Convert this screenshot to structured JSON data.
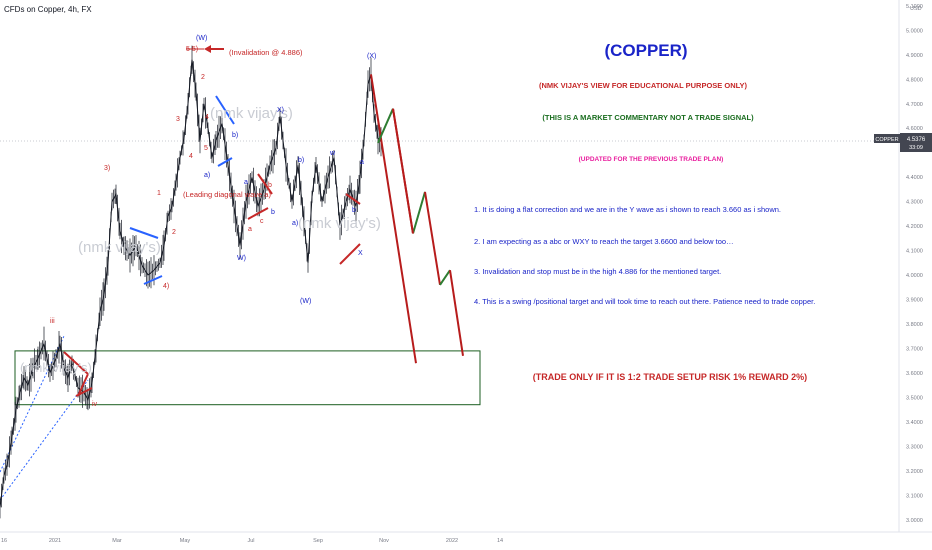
{
  "header": {
    "symbol_title": "CFDs on Copper, 4h, FX"
  },
  "price_axis": {
    "currency": "USD",
    "ticks": [
      "5.1000",
      "5.0000",
      "4.9000",
      "4.8000",
      "4.7000",
      "4.6000",
      "4.4000",
      "4.3000",
      "4.2000",
      "4.1000",
      "4.0000",
      "3.9000",
      "3.8000",
      "3.7000",
      "3.6000",
      "3.5000",
      "3.4000",
      "3.3000",
      "3.2000",
      "3.1000",
      "3.0000"
    ],
    "current_price_label": "COPPER",
    "current_price": "4.5376",
    "countdown": "33:09",
    "current_price_color": "#434651"
  },
  "time_axis": {
    "labels": [
      "16",
      "2021",
      "Mar",
      "May",
      "Jul",
      "Sep",
      "Nov",
      "2022",
      "14"
    ]
  },
  "texts": {
    "title": "(COPPER)",
    "disclaimer_1": "(NMK VIJAY'S VIEW FOR EDUCATIONAL PURPOSE ONLY)",
    "disclaimer_2": "(THIS IS A MARKET COMMENTARY NOT A TRADE SIGNAL)",
    "updated_note": "(UPDATED FOR THE PREVIOUS TRADE PLAN)",
    "point_1": "1. It is doing a flat correction and we are in the Y wave as i shown to reach 3.660 as i shown.",
    "point_2": "2. I am expecting as a abc or WXY to reach the target 3.6600 and below too…",
    "point_3": "3. Invalidation and stop must be in the high 4.886 for the mentioned target.",
    "point_4": "4. This is a swing /positional target and will took time to reach out there. Patience need to trade copper.",
    "trade_note": "(TRADE ONLY IF IT IS 1:2 TRADE SETUP RISK 1% REWARD 2%)",
    "invalidation": "(Invalidation @ 4.886)",
    "leading_diagonal": "(Leading diagonal wave a)",
    "watermark_1": "(nmk vijay's)",
    "watermark_2": "(nmk vijay's)",
    "watermark_3": "(nmk vijay's)",
    "watermark_4": "(nmk vijay's)"
  },
  "wave_labels": {
    "W_top": "(W)",
    "five_five": "5 5)",
    "three_paren": "3)",
    "four_paren": "4)",
    "one": "1",
    "two": "2",
    "three": "3",
    "four": "4",
    "five": "5",
    "a_small": "a)",
    "b_small": "b)",
    "x_small": "X)",
    "w_close": "W)",
    "a_red": "a",
    "b_red": "b",
    "c_red": "c",
    "a_blue": "a",
    "b_blue": "b",
    "b_paren2": "b)",
    "a_paren2": "a)",
    "w_lower": "w",
    "W_bottom": "(W)",
    "x_top": "(X)",
    "a_blue2": "a",
    "b_blue2": "b",
    "x_blue": "X",
    "iii": "iii",
    "iv": "iv",
    "one_small": "1",
    "three_small": "3",
    "four_small": "4",
    "two_small": "2"
  },
  "colors": {
    "blue_text": "#1a24c8",
    "red_text": "#c62828",
    "green_text": "#1b6e20",
    "magenta_text": "#e91e9e",
    "bearish_projection": "#b71c1c",
    "bullish_projection": "#2e7d32",
    "target_box": "#1b5e20"
  },
  "chart_data": {
    "type": "line",
    "title": "CFDs on Copper, 4h, FX",
    "xlabel": "",
    "ylabel": "",
    "ylim": [
      2.95,
      5.12
    ],
    "x_labels": [
      "16",
      "2021",
      "Mar",
      "May",
      "Jul",
      "Sep",
      "Nov",
      "2022",
      "14"
    ],
    "series": [
      {
        "values_note": "",
        "values": [
          [
            0,
            3.05
          ],
          [
            4,
            3.18
          ],
          [
            8,
            3.24
          ],
          [
            12,
            3.34
          ],
          [
            16,
            3.45
          ],
          [
            20,
            3.52
          ],
          [
            24,
            3.58
          ],
          [
            28,
            3.55
          ],
          [
            33,
            3.62
          ],
          [
            38,
            3.66
          ],
          [
            44,
            3.72
          ],
          [
            50,
            3.6
          ],
          [
            56,
            3.66
          ],
          [
            60,
            3.72
          ],
          [
            64,
            3.62
          ],
          [
            68,
            3.58
          ],
          [
            72,
            3.64
          ],
          [
            78,
            3.54
          ],
          [
            84,
            3.52
          ],
          [
            88,
            3.49
          ],
          [
            92,
            3.56
          ],
          [
            96,
            3.7
          ],
          [
            100,
            3.85
          ],
          [
            104,
            3.92
          ],
          [
            108,
            4.05
          ],
          [
            112,
            4.3
          ],
          [
            116,
            4.33
          ],
          [
            120,
            4.18
          ],
          [
            124,
            4.12
          ],
          [
            130,
            4.08
          ],
          [
            136,
            4.12
          ],
          [
            142,
            4.04
          ],
          [
            148,
            4.0
          ],
          [
            154,
            4.02
          ],
          [
            160,
            4.05
          ],
          [
            164,
            4.12
          ],
          [
            168,
            4.24
          ],
          [
            172,
            4.28
          ],
          [
            176,
            4.38
          ],
          [
            180,
            4.48
          ],
          [
            184,
            4.56
          ],
          [
            188,
            4.7
          ],
          [
            192,
            4.88
          ],
          [
            196,
            4.75
          ],
          [
            200,
            4.55
          ],
          [
            204,
            4.7
          ],
          [
            208,
            4.6
          ],
          [
            212,
            4.48
          ],
          [
            216,
            4.55
          ],
          [
            222,
            4.62
          ],
          [
            228,
            4.45
          ],
          [
            234,
            4.28
          ],
          [
            240,
            4.12
          ],
          [
            246,
            4.3
          ],
          [
            252,
            4.4
          ],
          [
            258,
            4.28
          ],
          [
            264,
            4.35
          ],
          [
            270,
            4.45
          ],
          [
            276,
            4.52
          ],
          [
            280,
            4.65
          ],
          [
            286,
            4.45
          ],
          [
            292,
            4.3
          ],
          [
            298,
            4.45
          ],
          [
            304,
            4.22
          ],
          [
            308,
            4.05
          ],
          [
            312,
            4.32
          ],
          [
            316,
            4.45
          ],
          [
            322,
            4.3
          ],
          [
            328,
            4.4
          ],
          [
            334,
            4.48
          ],
          [
            340,
            4.2
          ],
          [
            346,
            4.3
          ],
          [
            350,
            4.35
          ],
          [
            356,
            4.28
          ],
          [
            360,
            4.4
          ],
          [
            364,
            4.55
          ],
          [
            368,
            4.78
          ],
          [
            371,
            4.82
          ],
          [
            374,
            4.66
          ],
          [
            378,
            4.56
          ],
          [
            382,
            4.54
          ]
        ]
      }
    ],
    "projections": [
      {
        "color": "red",
        "points": [
          [
            371,
            4.82
          ],
          [
            416,
            3.64
          ]
        ]
      },
      {
        "color": "green",
        "points": [
          [
            378,
            4.54
          ],
          [
            393,
            4.68
          ],
          [
            413,
            4.17
          ],
          [
            425,
            4.34
          ],
          [
            440,
            3.96
          ],
          [
            450,
            4.02
          ],
          [
            463,
            3.67
          ]
        ]
      },
      {
        "color": "red_tail",
        "points": [
          [
            393,
            4.68
          ],
          [
            413,
            4.17
          ]
        ]
      }
    ],
    "target_zone": {
      "low": 3.47,
      "high": 3.69
    }
  }
}
